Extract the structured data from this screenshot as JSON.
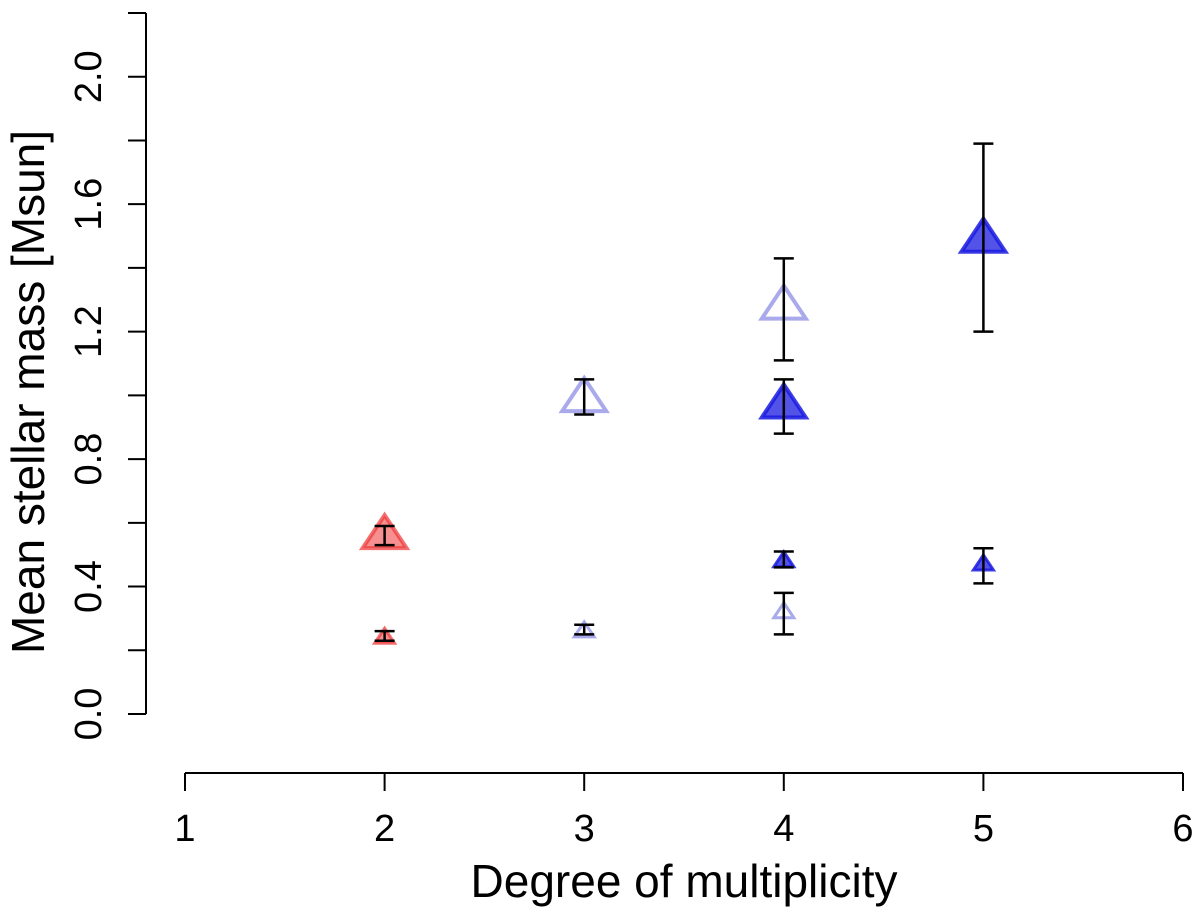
{
  "chart_data": {
    "type": "scatter",
    "xlabel": "Degree of multiplicity",
    "ylabel": "Mean stellar mass  [Msun]",
    "xlim": [
      1,
      6
    ],
    "ylim": [
      0,
      2.2
    ],
    "x_ticks": [
      "1",
      "2",
      "3",
      "4",
      "5",
      "6"
    ],
    "y_ticks": [
      "0.0",
      "0.4",
      "0.8",
      "1.2",
      "1.6",
      "2.0"
    ],
    "marker": "triangle",
    "colors": {
      "red": "#ee3333",
      "light_blue": "#8c8ce6",
      "dark_blue": "#1a1ae0",
      "error_bar": "#000000"
    },
    "points": [
      {
        "x": 2,
        "y": 0.56,
        "err_low": 0.53,
        "err_high": 0.59,
        "color": "red",
        "marker_size": "large",
        "filled": true
      },
      {
        "x": 2,
        "y": 0.24,
        "err_low": 0.23,
        "err_high": 0.26,
        "color": "red",
        "marker_size": "small",
        "filled": true
      },
      {
        "x": 3,
        "y": 0.99,
        "err_low": 0.94,
        "err_high": 1.05,
        "color": "light_blue",
        "marker_size": "large",
        "filled": false
      },
      {
        "x": 3,
        "y": 0.26,
        "err_low": 0.25,
        "err_high": 0.28,
        "color": "light_blue",
        "marker_size": "small",
        "filled": false
      },
      {
        "x": 4,
        "y": 1.28,
        "err_low": 1.11,
        "err_high": 1.43,
        "color": "light_blue",
        "marker_size": "large",
        "filled": false
      },
      {
        "x": 4,
        "y": 0.32,
        "err_low": 0.25,
        "err_high": 0.38,
        "color": "light_blue",
        "marker_size": "small",
        "filled": false
      },
      {
        "x": 4,
        "y": 0.97,
        "err_low": 0.88,
        "err_high": 1.05,
        "color": "dark_blue",
        "marker_size": "large",
        "filled": true
      },
      {
        "x": 4,
        "y": 0.48,
        "err_low": 0.46,
        "err_high": 0.51,
        "color": "dark_blue",
        "marker_size": "small",
        "filled": true
      },
      {
        "x": 5,
        "y": 1.49,
        "err_low": 1.2,
        "err_high": 1.79,
        "color": "dark_blue",
        "marker_size": "large",
        "filled": true
      },
      {
        "x": 5,
        "y": 0.47,
        "err_low": 0.41,
        "err_high": 0.52,
        "color": "dark_blue",
        "marker_size": "small",
        "filled": true
      }
    ],
    "grid": false,
    "legend": "none"
  }
}
